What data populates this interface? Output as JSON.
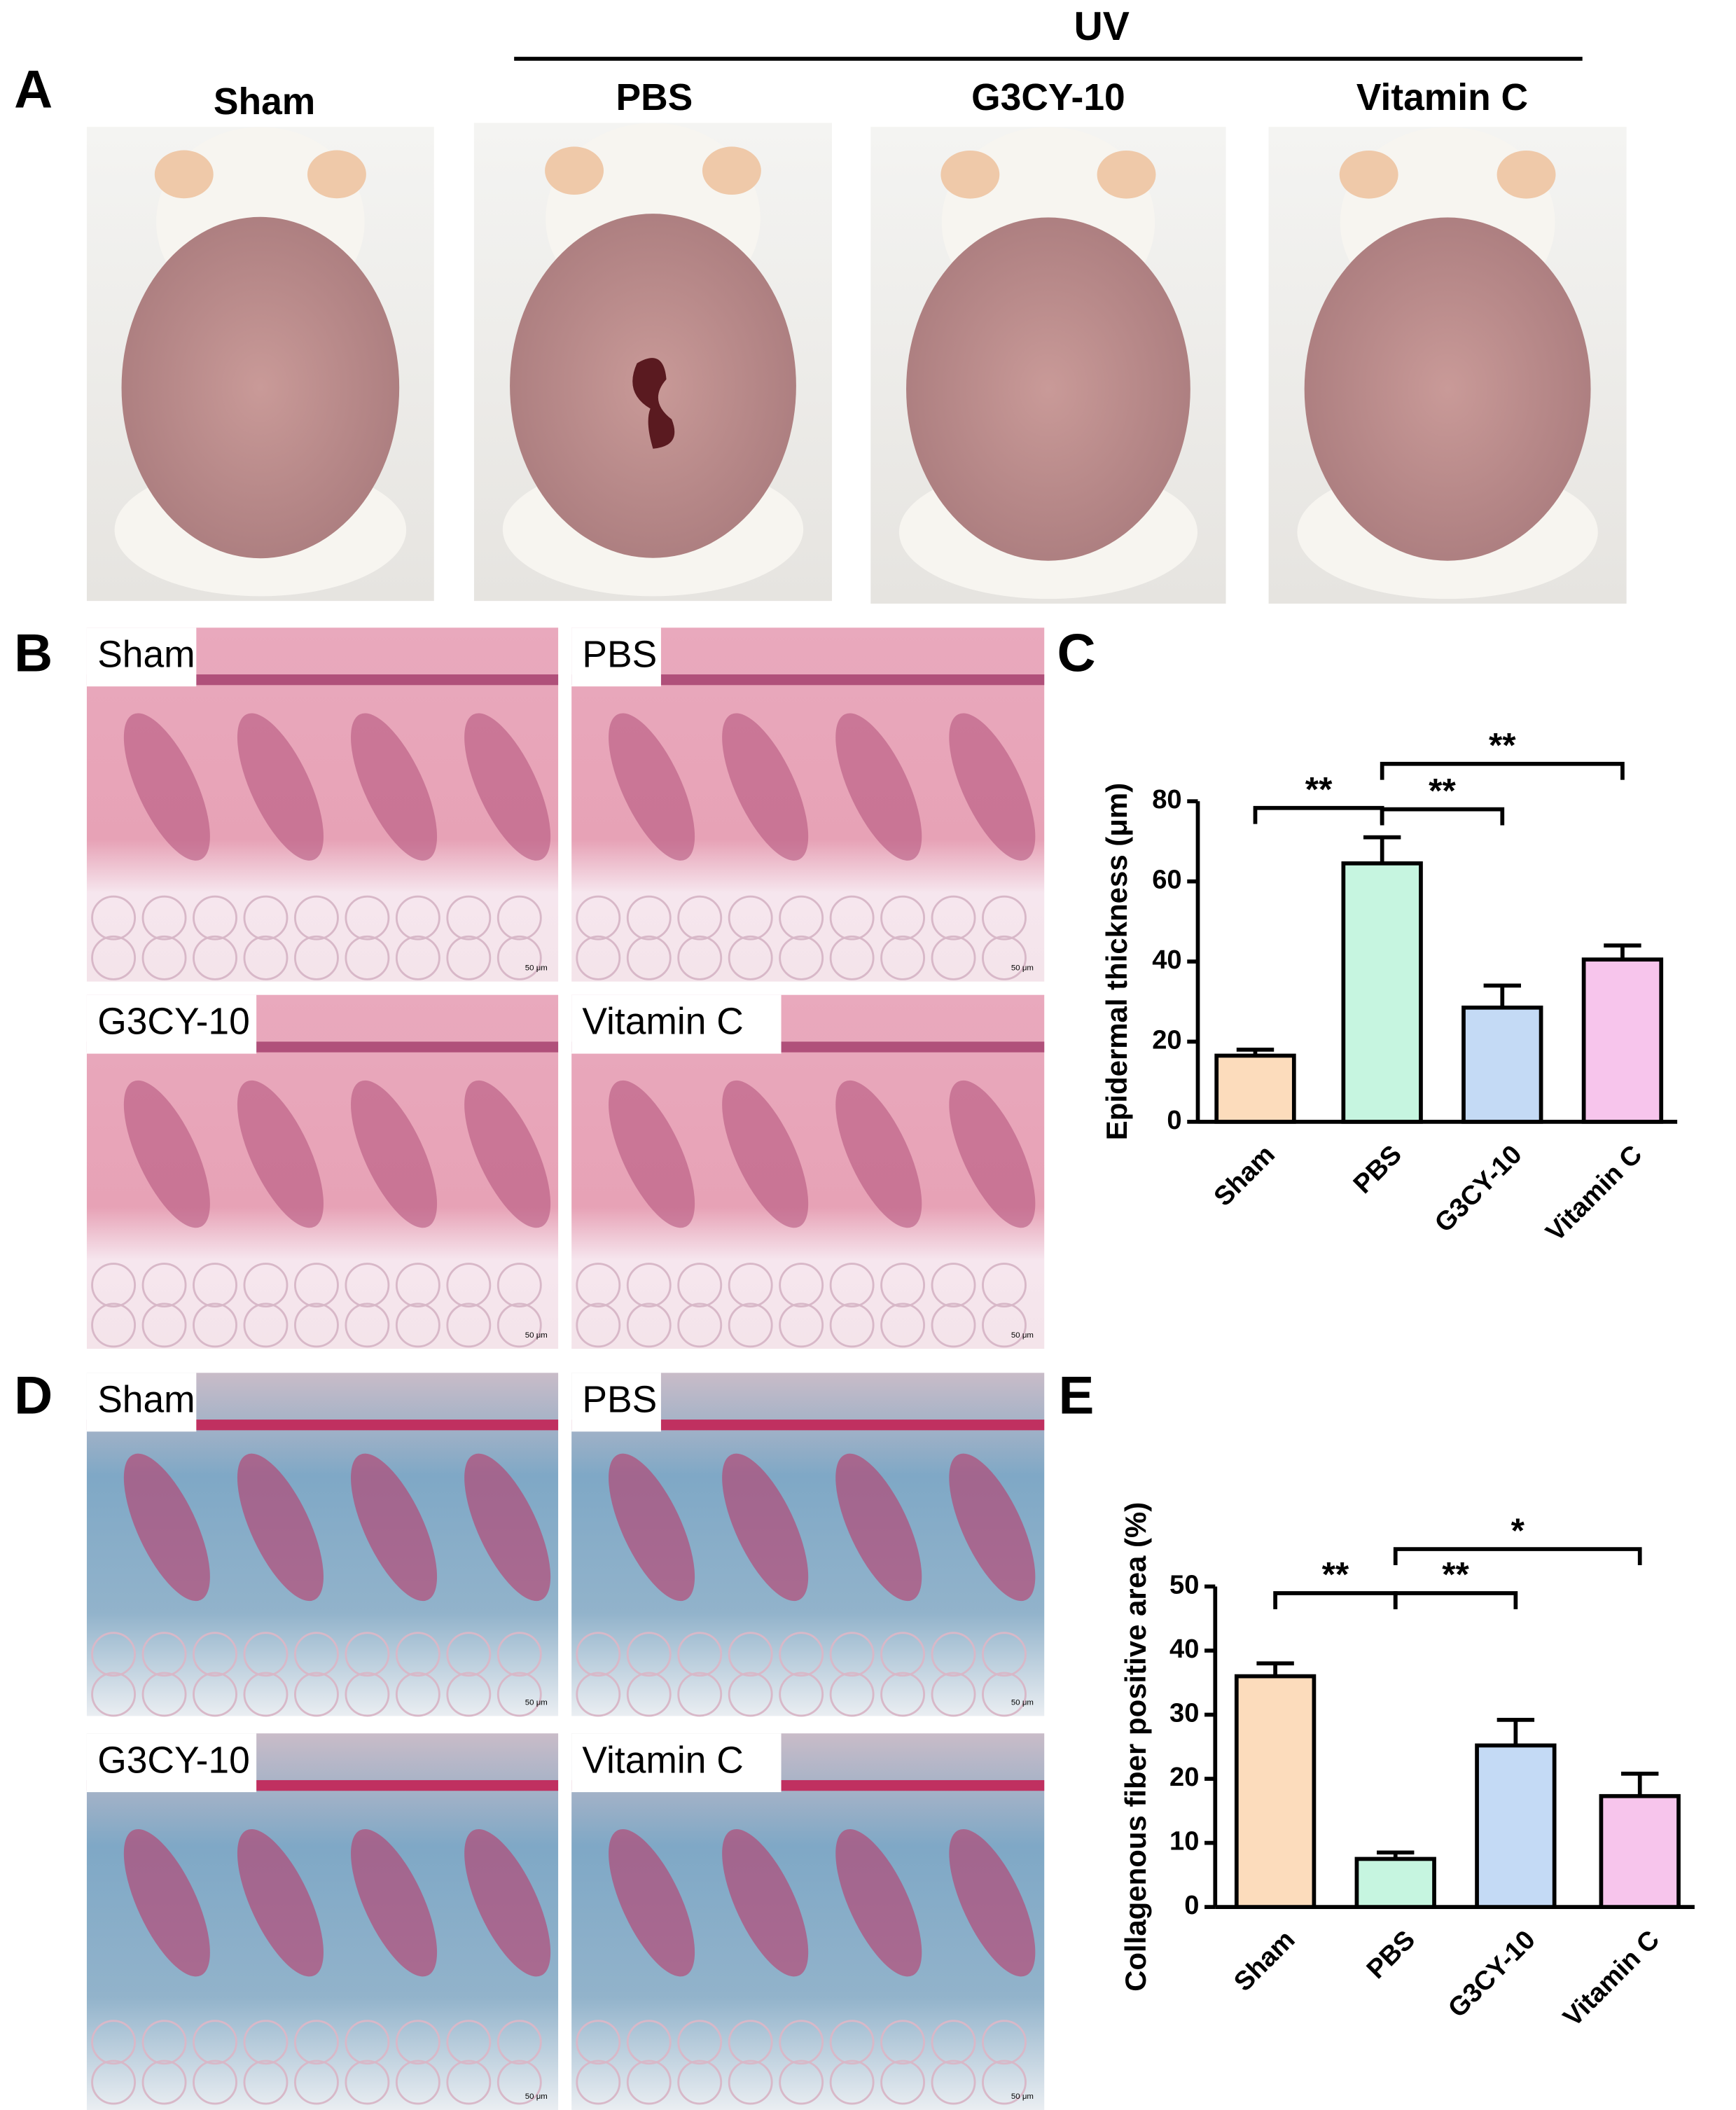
{
  "panel_letters": [
    "A",
    "B",
    "C",
    "D",
    "E"
  ],
  "photos": {
    "group_label": "UV",
    "labels": [
      "Sham",
      "PBS",
      "G3CY-10",
      "Vitamin C"
    ]
  },
  "he_stain": {
    "labels": [
      "Sham",
      "PBS",
      "G3CY-10",
      "Vitamin C"
    ],
    "scale_bar": "50 μm"
  },
  "trichrome": {
    "labels": [
      "Sham",
      "PBS",
      "G3CY-10",
      "Vitamin C"
    ],
    "scale_bar": "50 μm"
  },
  "chart_data": [
    {
      "type": "bar",
      "ylabel": "Epidermal thickness (μm)",
      "categories": [
        "Sham",
        "PBS",
        "G3CY-10",
        "Vitamin C"
      ],
      "values": [
        16.5,
        64.5,
        28.5,
        40.5
      ],
      "errors": [
        1.5,
        6.5,
        5.5,
        3.5
      ],
      "colors": [
        "#fcdcbc",
        "#c6f5e0",
        "#c4daf5",
        "#f7c5ec"
      ],
      "ylim": [
        0,
        80
      ],
      "yticks": [
        0,
        20,
        40,
        60,
        80
      ],
      "significance": [
        {
          "label": "**",
          "between": [
            "Sham",
            "PBS"
          ]
        },
        {
          "label": "**",
          "between": [
            "PBS",
            "G3CY-10"
          ]
        },
        {
          "label": "**",
          "between": [
            "PBS",
            "Vitamin C"
          ]
        }
      ]
    },
    {
      "type": "bar",
      "ylabel": "Collagenous fiber positive area (%)",
      "categories": [
        "Sham",
        "PBS",
        "G3CY-10",
        "Vitamin C"
      ],
      "values": [
        36,
        7.5,
        25.2,
        17.3
      ],
      "errors": [
        2,
        1,
        4,
        3.5
      ],
      "colors": [
        "#fcdcbc",
        "#c6f5e0",
        "#c4daf5",
        "#f7c5ec"
      ],
      "ylim": [
        0,
        50
      ],
      "yticks": [
        0,
        10,
        20,
        30,
        40,
        50
      ],
      "significance": [
        {
          "label": "**",
          "between": [
            "Sham",
            "PBS"
          ]
        },
        {
          "label": "**",
          "between": [
            "PBS",
            "G3CY-10"
          ]
        },
        {
          "label": "*",
          "between": [
            "PBS",
            "Vitamin C"
          ]
        }
      ]
    }
  ]
}
